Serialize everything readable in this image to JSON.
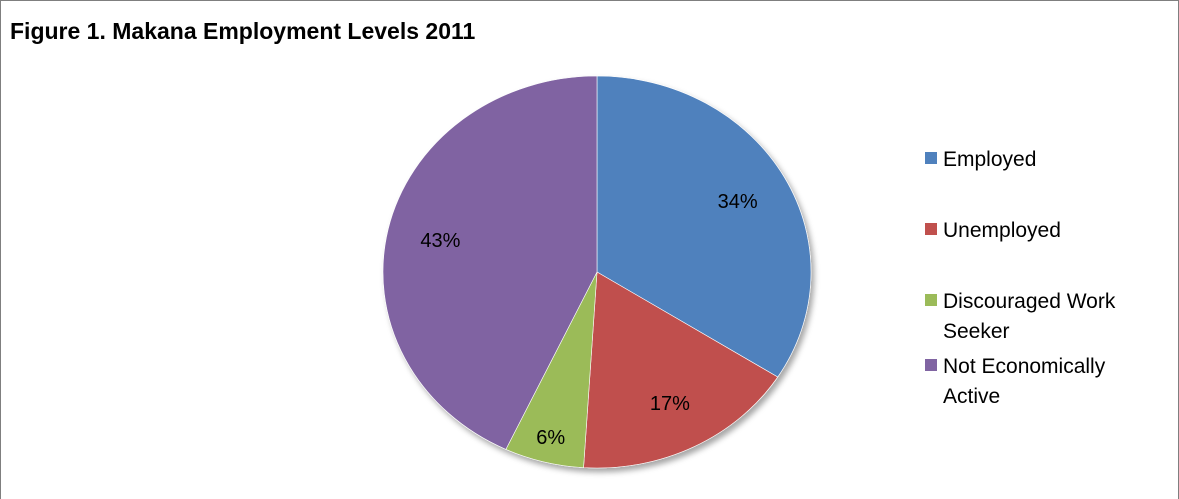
{
  "chart_data": {
    "type": "pie",
    "title": "Figure 1. Makana Employment Levels 2011",
    "slices": [
      {
        "label": [
          "Employed"
        ],
        "value": 34,
        "display": "34%",
        "color": "#4f81bd"
      },
      {
        "label": [
          "Unemployed"
        ],
        "value": 17,
        "display": "17%",
        "color": "#c0504d"
      },
      {
        "label": [
          "Discouraged Work",
          "Seeker"
        ],
        "value": 6,
        "display": "6%",
        "color": "#9bbb59"
      },
      {
        "label": [
          "Not Economically",
          "Active"
        ],
        "value": 43,
        "display": "43%",
        "color": "#8064a2"
      }
    ],
    "legend_position": "right"
  }
}
